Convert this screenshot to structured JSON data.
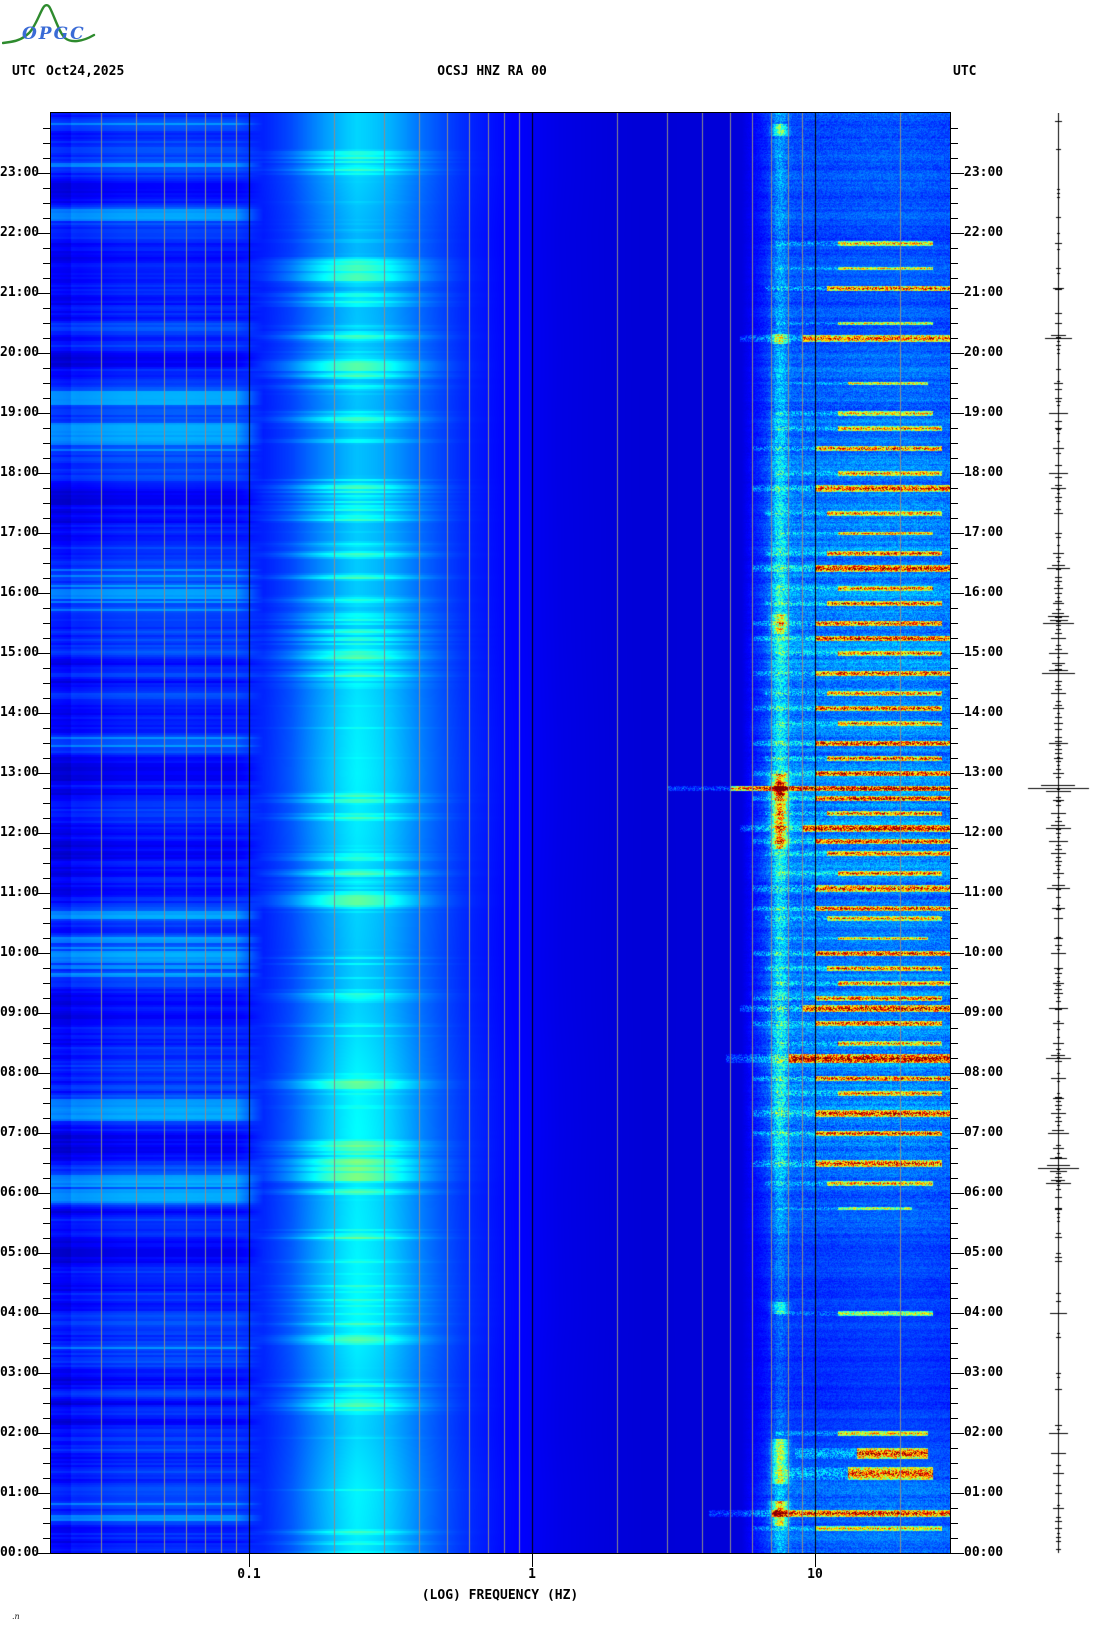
{
  "header": {
    "utc_left": "UTC",
    "date": "Oct24,2025",
    "title": "OCSJ HNZ RA 00",
    "utc_right": "UTC"
  },
  "logo": {
    "text": "OPGC"
  },
  "footer": {
    "mark": ".n"
  },
  "colors": {
    "background": "#ffffff",
    "text": "#000000",
    "grid_minor": "#8c8c8c",
    "grid_major": "#000000",
    "trace": "#000000",
    "logo_green": "#2e8b2e",
    "logo_blue": "#3a6bd6"
  },
  "chart_data": {
    "type": "heatmap",
    "subtype": "seismic-spectrogram",
    "title": "OCSJ HNZ RA 00",
    "date": "Oct24,2025",
    "colormap": "jet",
    "x_axis": {
      "label": "(LOG) FREQUENCY (HZ)",
      "scale": "log10",
      "range_hz": [
        0.02,
        30
      ],
      "ticks": [
        {
          "hz": 0.1,
          "label": "0.1"
        },
        {
          "hz": 1,
          "label": "1"
        },
        {
          "hz": 10,
          "label": "10"
        }
      ]
    },
    "y_axis": {
      "label": "UTC",
      "range": [
        "00:00",
        "24:00"
      ],
      "minutes_total": 1440,
      "minor_tick_minutes": 15,
      "hour_labels": [
        "23:00",
        "22:00",
        "21:00",
        "20:00",
        "19:00",
        "18:00",
        "17:00",
        "16:00",
        "15:00",
        "14:00",
        "13:00",
        "12:00",
        "11:00",
        "10:00",
        "09:00",
        "08:00",
        "07:00",
        "06:00",
        "05:00",
        "04:00",
        "03:00",
        "02:00",
        "01:00",
        "00:00"
      ]
    },
    "grid_minor_hz": [
      0.03,
      0.04,
      0.05,
      0.06,
      0.07,
      0.08,
      0.09,
      0.2,
      0.3,
      0.4,
      0.5,
      0.6,
      0.7,
      0.8,
      0.9,
      2,
      3,
      4,
      5,
      6,
      7,
      8,
      9,
      20
    ],
    "grid_major_hz": [
      0.1,
      1,
      10
    ],
    "base_curve_logf_v": [
      [
        -1.7,
        0.175
      ],
      [
        -1.6,
        0.155
      ],
      [
        -1.45,
        0.175
      ],
      [
        -1.25,
        0.18
      ],
      [
        -1.05,
        0.165
      ],
      [
        -0.95,
        0.135
      ],
      [
        -0.85,
        0.15
      ],
      [
        -0.7,
        0.2
      ],
      [
        -0.62,
        0.23
      ],
      [
        -0.5,
        0.21
      ],
      [
        -0.38,
        0.175
      ],
      [
        -0.25,
        0.14
      ],
      [
        -0.1,
        0.115
      ],
      [
        0.1,
        0.095
      ],
      [
        0.4,
        0.085
      ],
      [
        0.7,
        0.088
      ],
      [
        0.82,
        0.1
      ],
      [
        0.92,
        0.108
      ],
      [
        1.05,
        0.1
      ],
      [
        1.2,
        0.108
      ],
      [
        1.35,
        0.112
      ],
      [
        1.48,
        0.105
      ]
    ],
    "microseism_band": {
      "center_hz": 0.23,
      "sigma_decades": 0.17
    },
    "hourly_microseism_intensity": [
      0.6,
      0.65,
      0.5,
      0.55,
      0.7,
      0.65,
      0.6,
      0.7,
      0.65,
      0.5,
      0.45,
      0.5,
      0.6,
      0.65,
      0.6,
      0.5,
      0.45,
      0.45,
      0.4,
      0.4,
      0.45,
      0.4,
      0.35,
      0.5
    ],
    "hourly_highfreq_activity": [
      0.55,
      0.6,
      0.35,
      0.3,
      0.35,
      0.4,
      0.55,
      0.8,
      0.85,
      0.8,
      0.7,
      0.75,
      0.85,
      0.8,
      0.75,
      0.8,
      0.8,
      0.75,
      0.7,
      0.65,
      0.55,
      0.5,
      0.45,
      0.5
    ],
    "events_format": "[start_minute_utc, intensity_0to1, f_low_hz, f_high_hz, height_px]",
    "events": [
      [
        25,
        0.6,
        10,
        28,
        4
      ],
      [
        40,
        0.9,
        7,
        30,
        6
      ],
      [
        80,
        0.85,
        13,
        26,
        12
      ],
      [
        100,
        0.9,
        14,
        25,
        10
      ],
      [
        120,
        0.65,
        12,
        25,
        5
      ],
      [
        240,
        0.6,
        12,
        26,
        4
      ],
      [
        345,
        0.5,
        12,
        22,
        3
      ],
      [
        370,
        0.7,
        11,
        26,
        4
      ],
      [
        390,
        0.85,
        10,
        28,
        6
      ],
      [
        420,
        0.8,
        10,
        28,
        5
      ],
      [
        440,
        0.85,
        10,
        30,
        6
      ],
      [
        460,
        0.7,
        12,
        28,
        4
      ],
      [
        475,
        0.8,
        10,
        30,
        5
      ],
      [
        495,
        0.95,
        8,
        30,
        9
      ],
      [
        510,
        0.7,
        12,
        28,
        4
      ],
      [
        530,
        0.8,
        10,
        28,
        5
      ],
      [
        545,
        0.9,
        9,
        30,
        7
      ],
      [
        555,
        0.8,
        10,
        28,
        4
      ],
      [
        570,
        0.7,
        12,
        30,
        4
      ],
      [
        585,
        0.75,
        11,
        28,
        4
      ],
      [
        600,
        0.85,
        10,
        30,
        5
      ],
      [
        615,
        0.6,
        12,
        25,
        3
      ],
      [
        635,
        0.7,
        11,
        28,
        4
      ],
      [
        645,
        0.8,
        10,
        30,
        5
      ],
      [
        665,
        0.85,
        10,
        30,
        6
      ],
      [
        680,
        0.7,
        12,
        28,
        4
      ],
      [
        700,
        0.75,
        11,
        30,
        4
      ],
      [
        712,
        0.8,
        10,
        30,
        5
      ],
      [
        725,
        0.9,
        9,
        30,
        6
      ],
      [
        740,
        0.75,
        11,
        28,
        4
      ],
      [
        755,
        0.85,
        10,
        30,
        5
      ],
      [
        765,
        0.98,
        5,
        30,
        5
      ],
      [
        780,
        0.85,
        10,
        30,
        5
      ],
      [
        795,
        0.8,
        11,
        28,
        4
      ],
      [
        810,
        0.85,
        10,
        30,
        5
      ],
      [
        830,
        0.7,
        12,
        28,
        4
      ],
      [
        845,
        0.8,
        10,
        28,
        5
      ],
      [
        860,
        0.75,
        11,
        28,
        4
      ],
      [
        880,
        0.8,
        10,
        30,
        5
      ],
      [
        900,
        0.7,
        12,
        28,
        4
      ],
      [
        915,
        0.85,
        10,
        30,
        5
      ],
      [
        930,
        0.8,
        10,
        28,
        5
      ],
      [
        950,
        0.75,
        11,
        28,
        4
      ],
      [
        965,
        0.7,
        12,
        26,
        4
      ],
      [
        985,
        0.9,
        10,
        30,
        6
      ],
      [
        1000,
        0.8,
        11,
        28,
        4
      ],
      [
        1020,
        0.65,
        12,
        26,
        3
      ],
      [
        1040,
        0.7,
        11,
        28,
        4
      ],
      [
        1065,
        0.85,
        10,
        30,
        6
      ],
      [
        1080,
        0.7,
        12,
        28,
        4
      ],
      [
        1105,
        0.8,
        10,
        28,
        5
      ],
      [
        1125,
        0.7,
        12,
        28,
        4
      ],
      [
        1140,
        0.65,
        12,
        26,
        4
      ],
      [
        1170,
        0.55,
        13,
        25,
        3
      ],
      [
        1215,
        0.8,
        9,
        30,
        7
      ],
      [
        1230,
        0.6,
        12,
        26,
        3
      ],
      [
        1265,
        0.85,
        11,
        30,
        5
      ],
      [
        1285,
        0.6,
        12,
        26,
        3
      ],
      [
        1310,
        0.7,
        12,
        26,
        4
      ]
    ],
    "hf_columns_format": "[start_minute, duration_minutes, intensity] at ~7.5 Hz",
    "hf_columns": [
      [
        28,
        25,
        0.5
      ],
      [
        70,
        45,
        0.45
      ],
      [
        240,
        12,
        0.3
      ],
      [
        705,
        75,
        0.5
      ],
      [
        758,
        14,
        0.75
      ],
      [
        920,
        20,
        0.4
      ],
      [
        1210,
        10,
        0.4
      ],
      [
        1418,
        12,
        0.35
      ]
    ],
    "amplitude_trace": {
      "segments_format": "[minute_utc, halfwidth_px]",
      "segments": [
        [
          25,
          3
        ],
        [
          45,
          5
        ],
        [
          60,
          3
        ],
        [
          80,
          5
        ],
        [
          100,
          7
        ],
        [
          120,
          9
        ],
        [
          180,
          2
        ],
        [
          240,
          8
        ],
        [
          300,
          2
        ],
        [
          345,
          3
        ],
        [
          370,
          12
        ],
        [
          385,
          20
        ],
        [
          395,
          8
        ],
        [
          405,
          5
        ],
        [
          420,
          10
        ],
        [
          440,
          7
        ],
        [
          455,
          5
        ],
        [
          475,
          7
        ],
        [
          495,
          12
        ],
        [
          510,
          5
        ],
        [
          530,
          5
        ],
        [
          545,
          9
        ],
        [
          560,
          4
        ],
        [
          570,
          5
        ],
        [
          585,
          4
        ],
        [
          600,
          7
        ],
        [
          615,
          4
        ],
        [
          635,
          4
        ],
        [
          645,
          6
        ],
        [
          665,
          11
        ],
        [
          680,
          5
        ],
        [
          700,
          7
        ],
        [
          712,
          9
        ],
        [
          725,
          12
        ],
        [
          740,
          7
        ],
        [
          753,
          5
        ],
        [
          765,
          30
        ],
        [
          780,
          5
        ],
        [
          795,
          4
        ],
        [
          810,
          9
        ],
        [
          830,
          4
        ],
        [
          845,
          5
        ],
        [
          860,
          7
        ],
        [
          880,
          16
        ],
        [
          890,
          6
        ],
        [
          900,
          9
        ],
        [
          915,
          7
        ],
        [
          930,
          15
        ],
        [
          937,
          10
        ],
        [
          950,
          5
        ],
        [
          965,
          4
        ],
        [
          985,
          11
        ],
        [
          1000,
          5
        ],
        [
          1020,
          3
        ],
        [
          1040,
          4
        ],
        [
          1065,
          7
        ],
        [
          1080,
          9
        ],
        [
          1105,
          5
        ],
        [
          1125,
          3
        ],
        [
          1140,
          9
        ],
        [
          1155,
          3
        ],
        [
          1170,
          4
        ],
        [
          1215,
          13
        ],
        [
          1230,
          3
        ],
        [
          1265,
          5
        ],
        [
          1285,
          2
        ],
        [
          1310,
          3
        ]
      ],
      "hourly_tick_density": [
        0.5,
        0.5,
        0.25,
        0.2,
        0.2,
        0.3,
        0.5,
        0.65,
        0.7,
        0.65,
        0.6,
        0.65,
        0.7,
        0.65,
        0.6,
        0.65,
        0.65,
        0.6,
        0.55,
        0.5,
        0.4,
        0.35,
        0.25,
        0.3
      ]
    },
    "seed": 42
  }
}
